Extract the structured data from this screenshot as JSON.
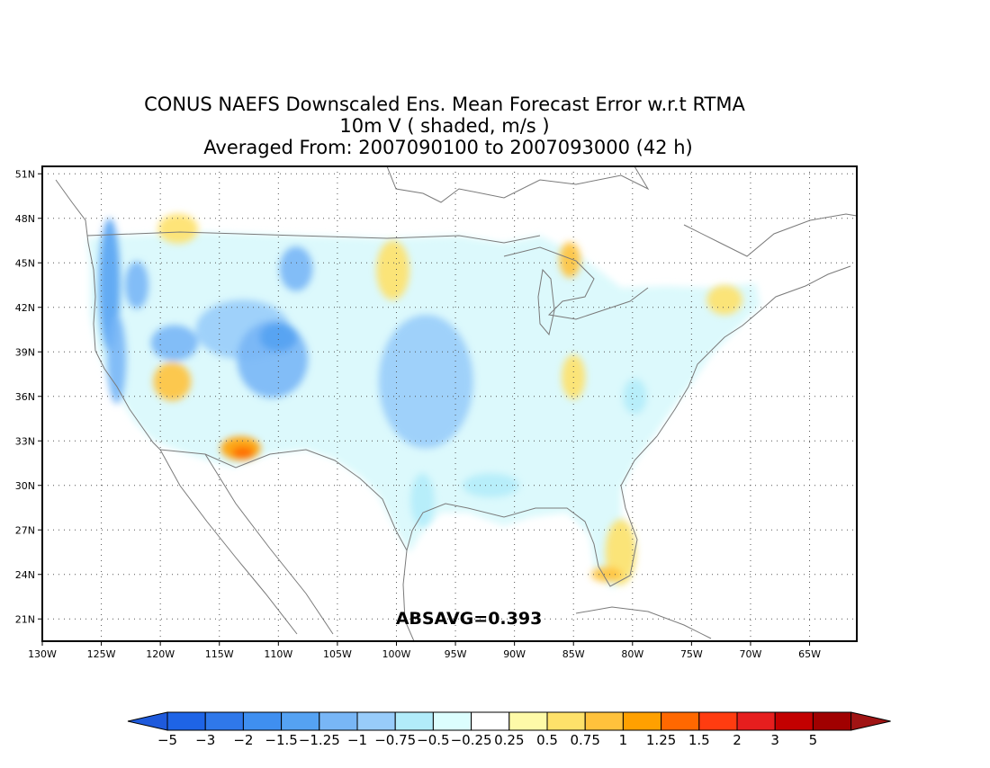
{
  "title": {
    "line1": "CONUS NAEFS Downscaled Ens. Mean Forecast Error w.r.t RTMA",
    "line2": "10m V ( shaded, m/s )",
    "line3": "Averaged From: 2007090100 to 2007093000 (42 h)"
  },
  "map": {
    "projection": "lat-lon",
    "lon_range": [
      -130,
      -61
    ],
    "lat_range": [
      19.5,
      51.5
    ],
    "grid": "dotted",
    "x_ticks": [
      {
        "lon": -130,
        "label": "130W"
      },
      {
        "lon": -125,
        "label": "125W"
      },
      {
        "lon": -120,
        "label": "120W"
      },
      {
        "lon": -115,
        "label": "115W"
      },
      {
        "lon": -110,
        "label": "110W"
      },
      {
        "lon": -105,
        "label": "105W"
      },
      {
        "lon": -100,
        "label": "100W"
      },
      {
        "lon": -95,
        "label": "95W"
      },
      {
        "lon": -90,
        "label": "90W"
      },
      {
        "lon": -85,
        "label": "85W"
      },
      {
        "lon": -80,
        "label": "80W"
      },
      {
        "lon": -75,
        "label": "75W"
      },
      {
        "lon": -70,
        "label": "70W"
      },
      {
        "lon": -65,
        "label": "65W"
      }
    ],
    "y_ticks": [
      {
        "lat": 21,
        "label": "21N"
      },
      {
        "lat": 24,
        "label": "24N"
      },
      {
        "lat": 27,
        "label": "27N"
      },
      {
        "lat": 30,
        "label": "30N"
      },
      {
        "lat": 33,
        "label": "33N"
      },
      {
        "lat": 36,
        "label": "36N"
      },
      {
        "lat": 39,
        "label": "39N"
      },
      {
        "lat": 42,
        "label": "42N"
      },
      {
        "lat": 45,
        "label": "45N"
      },
      {
        "lat": 48,
        "label": "48N"
      },
      {
        "lat": 51,
        "label": "51N"
      }
    ],
    "annotation": "ABSAVG=0.393",
    "field_regions": [
      {
        "lon": -124.3,
        "lat": 43.5,
        "rlon": 0.9,
        "rlat": 4.5,
        "value": -1.5
      },
      {
        "lon": -123.7,
        "lat": 38.5,
        "rlon": 0.8,
        "rlat": 3.0,
        "value": -1.25
      },
      {
        "lon": -122.0,
        "lat": 43.5,
        "rlon": 1.0,
        "rlat": 1.6,
        "value": -1.25
      },
      {
        "lon": -119.0,
        "lat": 37.0,
        "rlon": 1.6,
        "rlat": 1.3,
        "value": 0.75
      },
      {
        "lon": -118.8,
        "lat": 39.6,
        "rlon": 2.0,
        "rlat": 1.2,
        "value": -1.25
      },
      {
        "lon": -113.0,
        "lat": 40.5,
        "rlon": 4.0,
        "rlat": 2.0,
        "value": -1.0
      },
      {
        "lon": -110.5,
        "lat": 38.5,
        "rlon": 3.0,
        "rlat": 2.6,
        "value": -1.25
      },
      {
        "lon": -110.0,
        "lat": 40.0,
        "rlon": 1.6,
        "rlat": 1.0,
        "value": -1.5
      },
      {
        "lon": -108.5,
        "lat": 44.6,
        "rlon": 1.4,
        "rlat": 1.5,
        "value": -1.25
      },
      {
        "lon": -113.2,
        "lat": 32.5,
        "rlon": 1.7,
        "rlat": 0.8,
        "value": 1.0
      },
      {
        "lon": -113.0,
        "lat": 32.2,
        "rlon": 0.9,
        "rlat": 0.4,
        "value": 1.25
      },
      {
        "lon": -118.5,
        "lat": 47.3,
        "rlon": 1.7,
        "rlat": 1.0,
        "value": 0.5
      },
      {
        "lon": -100.3,
        "lat": 44.5,
        "rlon": 1.4,
        "rlat": 2.0,
        "value": 0.5
      },
      {
        "lon": -97.5,
        "lat": 37.0,
        "rlon": 4.0,
        "rlat": 4.5,
        "value": -1.0
      },
      {
        "lon": -97.8,
        "lat": 29.0,
        "rlon": 1.0,
        "rlat": 1.8,
        "value": -0.75
      },
      {
        "lon": -92.0,
        "lat": 30.0,
        "rlon": 2.4,
        "rlat": 0.8,
        "value": -0.75
      },
      {
        "lon": -85.3,
        "lat": 45.2,
        "rlon": 0.9,
        "rlat": 1.2,
        "value": 0.75
      },
      {
        "lon": -81.0,
        "lat": 25.5,
        "rlon": 1.3,
        "rlat": 2.2,
        "value": 0.5
      },
      {
        "lon": -82.2,
        "lat": 24.0,
        "rlon": 1.3,
        "rlat": 0.5,
        "value": 0.75
      },
      {
        "lon": -79.8,
        "lat": 36.0,
        "rlon": 1.0,
        "rlat": 1.2,
        "value": -0.75
      },
      {
        "lon": -72.2,
        "lat": 42.5,
        "rlon": 1.5,
        "rlat": 1.0,
        "value": 0.5
      },
      {
        "lon": -85.0,
        "lat": 37.3,
        "rlon": 1.0,
        "rlat": 1.5,
        "value": 0.5
      }
    ]
  },
  "colorbar": {
    "colors": [
      "#1e64e6",
      "#2f78ea",
      "#3f8ff0",
      "#55a2f2",
      "#78b6f6",
      "#98ccfa",
      "#b2ecfa",
      "#dcfefe",
      "#ffffff",
      "#fefaa8",
      "#fee16a",
      "#ffc23c",
      "#ffa000",
      "#ff6800",
      "#ff3c10",
      "#e61e1e",
      "#c30000",
      "#a00000"
    ],
    "low_extend_color": "#1e5adc",
    "high_extend_color": "#a01414",
    "labels": [
      "−5",
      "−3",
      "−2",
      "−1.5",
      "−1.25",
      "−1",
      "−0.75",
      "−0.5",
      "−0.25",
      "0.25",
      "0.5",
      "0.75",
      "1",
      "1.25",
      "1.5",
      "2",
      "3",
      "5"
    ]
  }
}
